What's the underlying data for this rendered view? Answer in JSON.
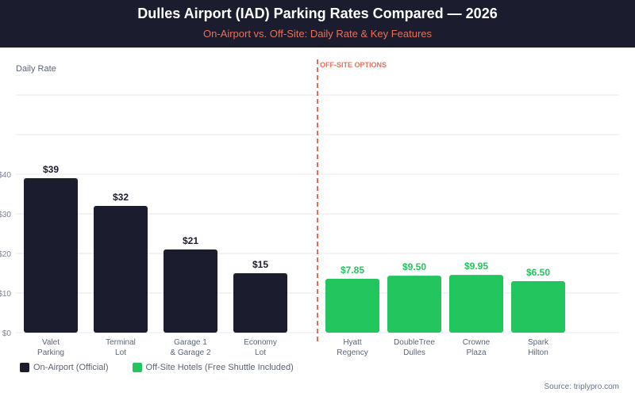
{
  "header": {
    "title": "Dulles Airport (IAD) Parking Rates Compared — 2026",
    "subtitle": "On-Airport vs. Off-Site: Daily Rate & Key Features"
  },
  "colors": {
    "on_airport": "#1b1c2e",
    "off_site": "#22c55e",
    "accent": "#e8705a",
    "grid": "#eef1f6"
  },
  "chart_data": {
    "type": "bar",
    "title": "Dulles Airport (IAD) Parking Rates Compared — 2026",
    "subtitle": "On-Airport vs. Off-Site: Daily Rate & Key Features",
    "ylabel": "Daily Rate",
    "xlabel": "",
    "ylim": [
      0,
      60
    ],
    "yticks": [
      {
        "value": 0,
        "label": "$0"
      },
      {
        "value": 10,
        "label": "$10"
      },
      {
        "value": 20,
        "label": "$20"
      },
      {
        "value": 30,
        "label": "$30"
      },
      {
        "value": 40,
        "label": "$40"
      },
      {
        "value": 50,
        "label": ""
      },
      {
        "value": 60,
        "label": ""
      }
    ],
    "grid": true,
    "divider_label": "OFF-SITE OPTIONS",
    "series": [
      {
        "name": "On-Airport (Official)",
        "group": "on_airport",
        "categories": [
          [
            "Valet",
            "Parking"
          ],
          [
            "Terminal",
            "Lot"
          ],
          [
            "Garage 1",
            "& Garage 2"
          ],
          [
            "Economy",
            "Lot"
          ]
        ],
        "values": [
          39,
          32,
          21,
          15
        ],
        "labels": [
          "$39",
          "$32",
          "$21",
          "$15"
        ]
      },
      {
        "name": "Off-Site Hotels (Free Shuttle Included)",
        "group": "off_site",
        "categories": [
          [
            "Hyatt",
            "Regency"
          ],
          [
            "DoubleTree",
            "Dulles"
          ],
          [
            "Crowne",
            "Plaza"
          ],
          [
            "Spark",
            "Hilton"
          ]
        ],
        "values": [
          7.85,
          9.5,
          9.95,
          6.5
        ],
        "labels": [
          "$7.85",
          "$9.50",
          "$9.95",
          "$6.50"
        ]
      }
    ],
    "legend": {
      "position": "bottom-left",
      "entries": [
        "On-Airport (Official)",
        "Off-Site Hotels (Free Shuttle Included)"
      ]
    }
  },
  "source": "Source: triplypro.com"
}
